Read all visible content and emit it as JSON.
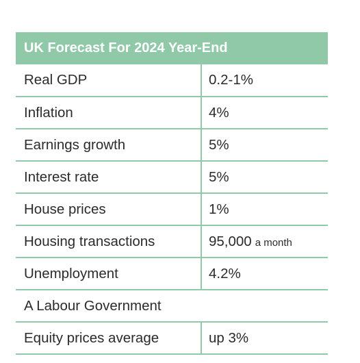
{
  "table": {
    "title": "UK Forecast For 2024 Year-End",
    "rows": [
      {
        "label": "Real GDP",
        "value": "0.2-1%",
        "unit": ""
      },
      {
        "label": "Inflation",
        "value": "4%",
        "unit": ""
      },
      {
        "label": "Earnings growth",
        "value": "5%",
        "unit": ""
      },
      {
        "label": "Interest rate",
        "value": "5%",
        "unit": ""
      },
      {
        "label": "House prices",
        "value": "1%",
        "unit": ""
      },
      {
        "label": "Housing transactions",
        "value": "95,000",
        "unit": "a month"
      },
      {
        "label": "Unemployment",
        "value": "4.2%",
        "unit": ""
      },
      {
        "label": "A Labour Government",
        "value": "",
        "unit": ""
      },
      {
        "label": "Equity prices average",
        "value": "up 3%",
        "unit": ""
      }
    ]
  },
  "colors": {
    "accent": "#8fc9a8",
    "header_text": "#ffffff",
    "body_text": "#2b2b2b"
  }
}
